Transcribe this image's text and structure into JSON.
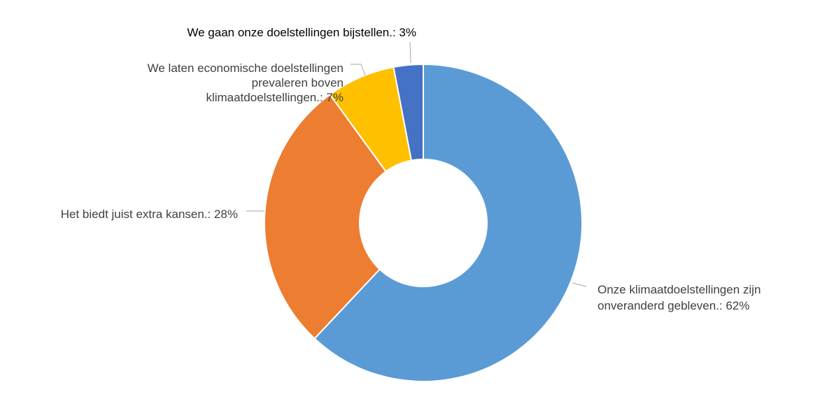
{
  "chart_data": {
    "type": "pie",
    "donut": true,
    "title": "",
    "slices": [
      {
        "label": "Onze klimaatdoelstellingen zijn onveranderd gebleven.",
        "display_lines": [
          "Onze klimaatdoelstellingen zijn",
          "onveranderd gebleven.: 62%"
        ],
        "value": 62,
        "color": "#5B9BD5"
      },
      {
        "label": "Het biedt juist extra kansen.",
        "display_lines": [
          "Het biedt juist extra kansen.: 28%"
        ],
        "value": 28,
        "color": "#ED7D31"
      },
      {
        "label": "We laten economische doelstellingen prevaleren boven klimaatdoelstellingen.",
        "display_lines": [
          "We laten economische doelstellingen",
          "prevaleren boven",
          "klimaatdoelstellingen.: 7%"
        ],
        "value": 7,
        "color": "#FFC000"
      },
      {
        "label": "We gaan onze doelstellingen bijstellen.",
        "display_lines": [
          "We gaan onze doelstellingen bijstellen.: 3%"
        ],
        "value": 3,
        "color": "#4472C4"
      }
    ],
    "legend": "none",
    "data_labels": "outside-with-leader-lines"
  }
}
